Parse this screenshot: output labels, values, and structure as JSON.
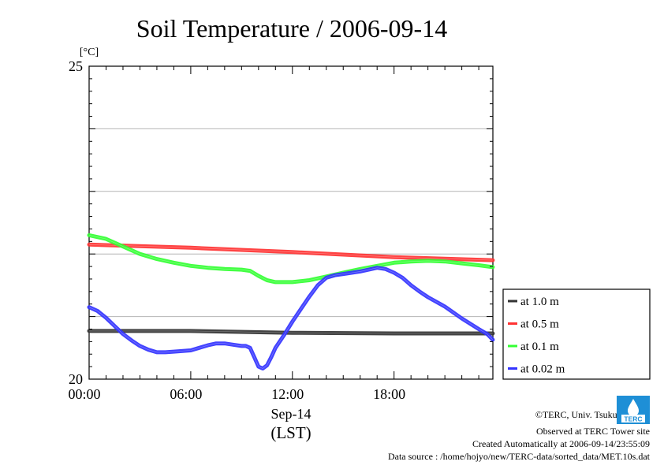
{
  "chart_data": {
    "type": "line",
    "title": "Soil Temperature / 2006-09-14",
    "ylabel": "[°C]",
    "xlabel": "(LST)",
    "date_label": "Sep-14",
    "x_unit": "hours since 2006-09-14 00:00",
    "xlim": [
      0,
      23.8333
    ],
    "ylim": [
      20,
      25
    ],
    "y_ticks": [
      "25",
      "20"
    ],
    "x_ticks": [
      {
        "x": 0,
        "label": "00:00"
      },
      {
        "x": 6,
        "label": "06:00"
      },
      {
        "x": 12,
        "label": "12:00"
      },
      {
        "x": 18,
        "label": "18:00"
      }
    ],
    "grid": "horizontal",
    "legend_position": "right",
    "series": [
      {
        "name": "at 1.0 m",
        "color": "#333333",
        "x": [
          0,
          6,
          12,
          18,
          23.83
        ],
        "y": [
          20.77,
          20.77,
          20.74,
          20.73,
          20.73
        ]
      },
      {
        "name": "at 0.5 m",
        "color": "#ff3333",
        "x": [
          0,
          6,
          12,
          18,
          23.83
        ],
        "y": [
          22.15,
          22.1,
          22.03,
          21.95,
          21.9
        ]
      },
      {
        "name": "at 0.1 m",
        "color": "#33ff33",
        "x": [
          0,
          1,
          2,
          3,
          4,
          5,
          6,
          7,
          8,
          9,
          9.5,
          10,
          10.5,
          11,
          12,
          13,
          14,
          15,
          16,
          17,
          18,
          19,
          20,
          21,
          22,
          23,
          23.83
        ],
        "y": [
          22.3,
          22.24,
          22.12,
          22.0,
          21.92,
          21.86,
          21.81,
          21.78,
          21.76,
          21.75,
          21.73,
          21.65,
          21.58,
          21.55,
          21.55,
          21.58,
          21.64,
          21.7,
          21.76,
          21.81,
          21.86,
          21.88,
          21.89,
          21.88,
          21.85,
          21.82,
          21.79
        ]
      },
      {
        "name": "at 0.02 m",
        "color": "#3333ff",
        "x": [
          0,
          0.5,
          1,
          1.5,
          2,
          2.5,
          3,
          3.5,
          4,
          4.5,
          5,
          6,
          6.5,
          7,
          7.5,
          8,
          8.5,
          9,
          9.25,
          9.5,
          9.75,
          10,
          10.25,
          10.5,
          10.75,
          11,
          11.5,
          12,
          12.5,
          13,
          13.5,
          14,
          14.5,
          15,
          15.5,
          16,
          16.5,
          17,
          17.5,
          18,
          18.5,
          19,
          19.5,
          20,
          21,
          22,
          23,
          23.5,
          23.83
        ],
        "y": [
          21.15,
          21.09,
          20.98,
          20.85,
          20.72,
          20.62,
          20.53,
          20.47,
          20.43,
          20.43,
          20.44,
          20.46,
          20.5,
          20.54,
          20.57,
          20.57,
          20.55,
          20.53,
          20.53,
          20.5,
          20.35,
          20.2,
          20.17,
          20.22,
          20.35,
          20.5,
          20.7,
          20.92,
          21.12,
          21.32,
          21.5,
          21.62,
          21.66,
          21.68,
          21.7,
          21.72,
          21.75,
          21.78,
          21.76,
          21.7,
          21.62,
          21.5,
          21.4,
          21.31,
          21.16,
          20.97,
          20.8,
          20.72,
          20.63
        ]
      }
    ]
  },
  "footer": {
    "copyright": "©TERC, Univ. Tsukuba",
    "observed": "Observed at TERC Tower site",
    "created": "Created Automatically at 2006-09-14/23:55:09",
    "source": "Data source : /home/hojyo/new/TERC-data/sorted_data/MET.10s.dat"
  },
  "logo": {
    "name": "terc-logo",
    "text": "TERC",
    "color": "#1e8fd6"
  }
}
